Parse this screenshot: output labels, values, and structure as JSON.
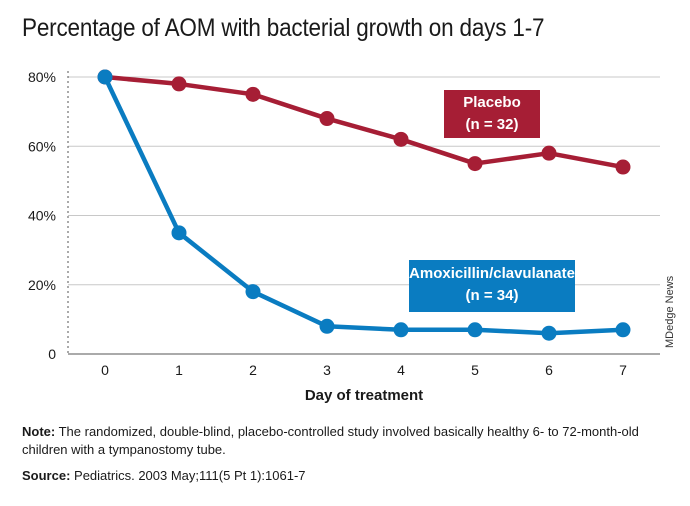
{
  "colors": {
    "placebo": "#a61e35",
    "amoxicillin": "#0a7cc1",
    "grid": "#c8c8c8",
    "axis": "#555555",
    "text": "#1a1a1a"
  },
  "chart_data": {
    "type": "line",
    "title": "Percentage of AOM with bacterial growth on days 1-7",
    "xlabel": "Day of treatment",
    "ylabel": "",
    "x": [
      0,
      1,
      2,
      3,
      4,
      5,
      6,
      7
    ],
    "x_tick_labels": [
      "0",
      "1",
      "2",
      "3",
      "4",
      "5",
      "6",
      "7"
    ],
    "ylim": [
      0,
      80
    ],
    "y_ticks": [
      0,
      20,
      40,
      60,
      80
    ],
    "y_tick_labels": [
      "0",
      "20%",
      "40%",
      "60%",
      "80%"
    ],
    "grid": "horizontal",
    "series": [
      {
        "name": "Placebo",
        "subtitle": "(n = 32)",
        "color": "#a61e35",
        "values": [
          80,
          78,
          75,
          68,
          62,
          55,
          58,
          54
        ]
      },
      {
        "name": "Amoxicillin/clavulanate",
        "subtitle": "(n = 34)",
        "color": "#0a7cc1",
        "values": [
          80,
          35,
          18,
          8,
          7,
          7,
          6,
          7
        ]
      }
    ]
  },
  "credit": "MDedge News",
  "note": {
    "label": "Note:",
    "text": " The randomized, double-blind, placebo-controlled study involved basically healthy 6- to 72-month-old children with a tympanostomy tube."
  },
  "source": {
    "label": "Source:",
    "text": " Pediatrics. 2003 May;111(5 Pt 1):1061-7"
  }
}
